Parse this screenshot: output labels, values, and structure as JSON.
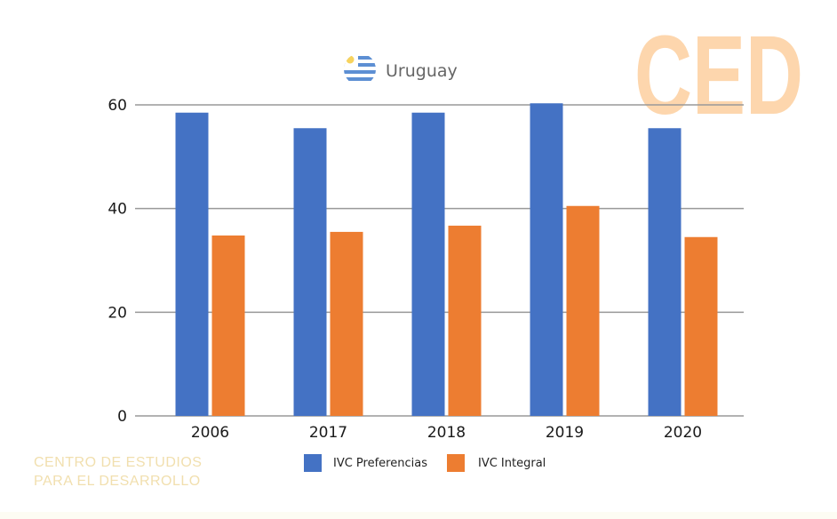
{
  "chart_data": {
    "type": "bar",
    "title": "Uruguay",
    "categories": [
      "2006",
      "2017",
      "2018",
      "2019",
      "2020"
    ],
    "series": [
      {
        "name": "IVC Preferencias",
        "color": "#4472c4",
        "values": [
          58.5,
          55.5,
          58.5,
          60.3,
          55.5
        ]
      },
      {
        "name": "IVC Integral",
        "color": "#ed7d31",
        "values": [
          34.8,
          35.5,
          36.7,
          40.5,
          34.5
        ]
      }
    ],
    "yticks": [
      "0",
      "20",
      "40",
      "60"
    ],
    "ylim": [
      0,
      60
    ],
    "xlabel": "",
    "ylabel": "",
    "grid": true,
    "legend_position": "bottom"
  },
  "branding": {
    "logo_text": "CED",
    "org_line1": "CENTRO DE ESTUDIOS",
    "org_line2": "PARA EL DESARROLLO"
  },
  "icons": {
    "title_icon": "uruguay-flag-icon"
  },
  "colors": {
    "grid": "#999999",
    "logo": "#fdd6ad",
    "org_text": "#f1dfae"
  }
}
